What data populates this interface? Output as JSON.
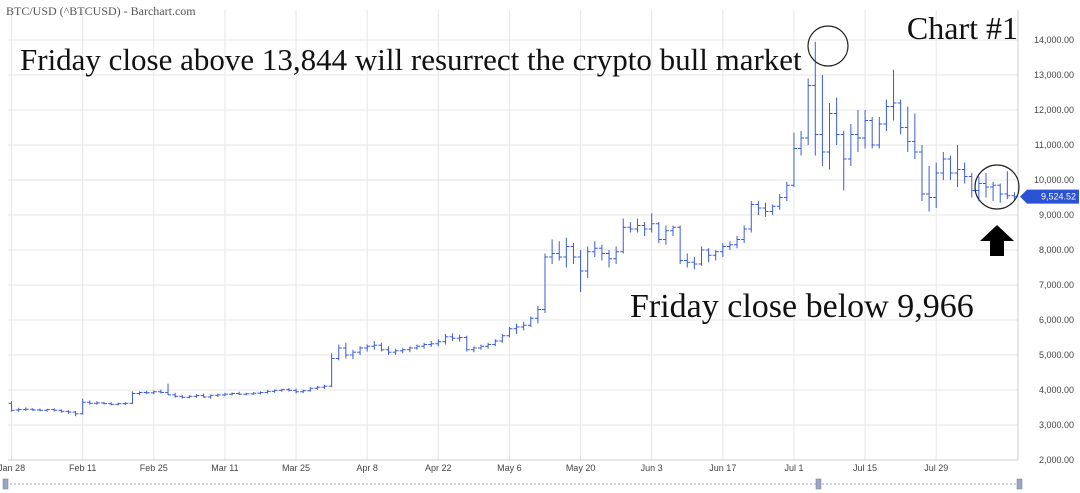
{
  "header": {
    "source_title": "BTC/USD (^BTCUSD) - Barchart.com",
    "chart_label": "Chart #1"
  },
  "annotations": {
    "upper": "Friday close above 13,844 will resurrect the crypto bull market",
    "lower": "Friday close below 9,966"
  },
  "colors": {
    "bars": "#3a5bd9",
    "grid": "#e6e6e6",
    "last_price_tag": "#2a52d4",
    "arrow": "#000000",
    "circle": "#222222"
  },
  "chart_data": {
    "type": "bar",
    "style": "ohlc",
    "title": "BTC/USD (^BTCUSD) - Barchart.com",
    "last_price_label": "9,524.52",
    "last_price": 9524.52,
    "ylim": [
      2000,
      14000
    ],
    "y_ticks": [
      {
        "value": 2000,
        "label": "2,000.00"
      },
      {
        "value": 3000,
        "label": "3,000.00"
      },
      {
        "value": 4000,
        "label": "4,000.00"
      },
      {
        "value": 5000,
        "label": "5,000.00"
      },
      {
        "value": 6000,
        "label": "6,000.00"
      },
      {
        "value": 7000,
        "label": "7,000.00"
      },
      {
        "value": 8000,
        "label": "8,000.00"
      },
      {
        "value": 9000,
        "label": "9,000.00"
      },
      {
        "value": 10000,
        "label": "10,000.00"
      },
      {
        "value": 11000,
        "label": "11,000.00"
      },
      {
        "value": 12000,
        "label": "12,000.00"
      },
      {
        "value": 13000,
        "label": "13,000.00"
      },
      {
        "value": 14000,
        "label": "14,000.00"
      }
    ],
    "x_ticks": [
      {
        "index": 0,
        "label": "Jan 28"
      },
      {
        "index": 10,
        "label": "Feb 11"
      },
      {
        "index": 20,
        "label": "Feb 25"
      },
      {
        "index": 30,
        "label": "Mar 11"
      },
      {
        "index": 40,
        "label": "Mar 25"
      },
      {
        "index": 50,
        "label": "Apr 8"
      },
      {
        "index": 60,
        "label": "Apr 22"
      },
      {
        "index": 70,
        "label": "May 6"
      },
      {
        "index": 80,
        "label": "May 20"
      },
      {
        "index": 90,
        "label": "Jun 3"
      },
      {
        "index": 100,
        "label": "Jun 17"
      },
      {
        "index": 110,
        "label": "Jul 1"
      },
      {
        "index": 120,
        "label": "Jul 15"
      },
      {
        "index": 130,
        "label": "Jul 29"
      }
    ],
    "ohlc": [
      [
        3620,
        3680,
        3380,
        3420
      ],
      [
        3430,
        3490,
        3380,
        3440
      ],
      [
        3440,
        3500,
        3400,
        3450
      ],
      [
        3450,
        3480,
        3400,
        3430
      ],
      [
        3430,
        3470,
        3390,
        3420
      ],
      [
        3420,
        3460,
        3380,
        3440
      ],
      [
        3440,
        3480,
        3390,
        3420
      ],
      [
        3420,
        3450,
        3350,
        3390
      ],
      [
        3390,
        3420,
        3320,
        3370
      ],
      [
        3370,
        3400,
        3250,
        3320
      ],
      [
        3320,
        3750,
        3300,
        3650
      ],
      [
        3650,
        3700,
        3580,
        3620
      ],
      [
        3620,
        3680,
        3580,
        3630
      ],
      [
        3630,
        3660,
        3590,
        3610
      ],
      [
        3610,
        3650,
        3560,
        3590
      ],
      [
        3590,
        3640,
        3560,
        3610
      ],
      [
        3610,
        3650,
        3570,
        3620
      ],
      [
        3620,
        3960,
        3600,
        3900
      ],
      [
        3900,
        3960,
        3850,
        3930
      ],
      [
        3930,
        3980,
        3880,
        3920
      ],
      [
        3920,
        3990,
        3880,
        3950
      ],
      [
        3950,
        4010,
        3900,
        3930
      ],
      [
        3930,
        4180,
        3860,
        3860
      ],
      [
        3860,
        3920,
        3780,
        3820
      ],
      [
        3820,
        3860,
        3760,
        3790
      ],
      [
        3790,
        3850,
        3760,
        3820
      ],
      [
        3820,
        3880,
        3780,
        3840
      ],
      [
        3840,
        3900,
        3780,
        3800
      ],
      [
        3800,
        3870,
        3750,
        3850
      ],
      [
        3850,
        3900,
        3800,
        3860
      ],
      [
        3860,
        3920,
        3820,
        3880
      ],
      [
        3880,
        3930,
        3840,
        3900
      ],
      [
        3900,
        3950,
        3850,
        3880
      ],
      [
        3880,
        3920,
        3850,
        3890
      ],
      [
        3890,
        3940,
        3860,
        3910
      ],
      [
        3910,
        3960,
        3870,
        3930
      ],
      [
        3930,
        4000,
        3900,
        3960
      ],
      [
        3960,
        4020,
        3920,
        3990
      ],
      [
        3990,
        4040,
        3950,
        4010
      ],
      [
        4010,
        4060,
        3960,
        3990
      ],
      [
        3990,
        4040,
        3900,
        3950
      ],
      [
        3950,
        4010,
        3910,
        3980
      ],
      [
        3980,
        4080,
        3950,
        4050
      ],
      [
        4050,
        4120,
        4000,
        4080
      ],
      [
        4080,
        4150,
        4030,
        4110
      ],
      [
        4110,
        5050,
        4080,
        4900
      ],
      [
        4900,
        5300,
        4850,
        5200
      ],
      [
        5200,
        5350,
        4900,
        5000
      ],
      [
        5000,
        5150,
        4880,
        5080
      ],
      [
        5080,
        5250,
        5000,
        5200
      ],
      [
        5200,
        5300,
        5100,
        5250
      ],
      [
        5250,
        5400,
        5150,
        5280
      ],
      [
        5280,
        5350,
        5100,
        5150
      ],
      [
        5150,
        5250,
        5000,
        5080
      ],
      [
        5080,
        5180,
        5000,
        5120
      ],
      [
        5120,
        5200,
        5050,
        5150
      ],
      [
        5150,
        5250,
        5080,
        5200
      ],
      [
        5200,
        5300,
        5150,
        5250
      ],
      [
        5250,
        5350,
        5180,
        5300
      ],
      [
        5300,
        5400,
        5230,
        5320
      ],
      [
        5320,
        5450,
        5250,
        5380
      ],
      [
        5380,
        5600,
        5300,
        5520
      ],
      [
        5520,
        5620,
        5400,
        5480
      ],
      [
        5480,
        5580,
        5380,
        5500
      ],
      [
        5500,
        5550,
        5100,
        5150
      ],
      [
        5150,
        5250,
        5080,
        5200
      ],
      [
        5200,
        5300,
        5150,
        5250
      ],
      [
        5250,
        5350,
        5180,
        5300
      ],
      [
        5300,
        5450,
        5250,
        5400
      ],
      [
        5400,
        5600,
        5350,
        5550
      ],
      [
        5550,
        5800,
        5500,
        5750
      ],
      [
        5750,
        5900,
        5600,
        5800
      ],
      [
        5800,
        5950,
        5700,
        5850
      ],
      [
        5850,
        6100,
        5800,
        6050
      ],
      [
        6050,
        6400,
        5900,
        6300
      ],
      [
        6300,
        7900,
        6200,
        7800
      ],
      [
        7800,
        8300,
        7600,
        7900
      ],
      [
        7900,
        8250,
        7700,
        7800
      ],
      [
        7800,
        8350,
        7500,
        8100
      ],
      [
        8100,
        8200,
        7600,
        7800
      ],
      [
        7800,
        8000,
        6800,
        7400
      ],
      [
        7400,
        8100,
        7200,
        7950
      ],
      [
        7950,
        8250,
        7800,
        8050
      ],
      [
        8050,
        8150,
        7700,
        7900
      ],
      [
        7900,
        8000,
        7500,
        7750
      ],
      [
        7750,
        8100,
        7600,
        7950
      ],
      [
        7950,
        8900,
        7900,
        8650
      ],
      [
        8650,
        8800,
        8500,
        8600
      ],
      [
        8600,
        8900,
        8500,
        8700
      ],
      [
        8700,
        8800,
        8400,
        8600
      ],
      [
        8600,
        9050,
        8500,
        8750
      ],
      [
        8750,
        8800,
        8200,
        8300
      ],
      [
        8300,
        8700,
        8150,
        8550
      ],
      [
        8550,
        8700,
        8400,
        8650
      ],
      [
        8650,
        8700,
        7600,
        7700
      ],
      [
        7700,
        7900,
        7500,
        7650
      ],
      [
        7650,
        7800,
        7450,
        7600
      ],
      [
        7600,
        8100,
        7550,
        8000
      ],
      [
        8000,
        8050,
        7650,
        7850
      ],
      [
        7850,
        8000,
        7700,
        7950
      ],
      [
        7950,
        8200,
        7800,
        8100
      ],
      [
        8100,
        8250,
        8000,
        8150
      ],
      [
        8150,
        8400,
        8050,
        8300
      ],
      [
        8300,
        8700,
        8200,
        8600
      ],
      [
        8600,
        9400,
        8500,
        9300
      ],
      [
        9300,
        9400,
        9000,
        9200
      ],
      [
        9200,
        9350,
        8950,
        9100
      ],
      [
        9100,
        9300,
        9000,
        9250
      ],
      [
        9250,
        9600,
        9150,
        9500
      ],
      [
        9500,
        9950,
        9400,
        9850
      ],
      [
        9850,
        11350,
        9800,
        10900
      ],
      [
        10900,
        11400,
        10700,
        11200
      ],
      [
        11200,
        12900,
        11000,
        12700
      ],
      [
        12700,
        13950,
        10700,
        11300
      ],
      [
        11300,
        13000,
        10400,
        10800
      ],
      [
        10800,
        12200,
        10300,
        11900
      ],
      [
        11900,
        12350,
        11000,
        11300
      ],
      [
        11300,
        11400,
        9700,
        10600
      ],
      [
        10600,
        11600,
        10400,
        11300
      ],
      [
        11300,
        12000,
        10800,
        11200
      ],
      [
        11200,
        12000,
        10900,
        11700
      ],
      [
        11700,
        11800,
        10900,
        11000
      ],
      [
        11000,
        11800,
        10900,
        11600
      ],
      [
        11600,
        12300,
        11400,
        12100
      ],
      [
        12100,
        13150,
        11700,
        12200
      ],
      [
        12200,
        12300,
        11300,
        11500
      ],
      [
        11500,
        12100,
        10800,
        11100
      ],
      [
        11100,
        11900,
        10600,
        10800
      ],
      [
        10800,
        11000,
        9400,
        9600
      ],
      [
        9600,
        10400,
        9100,
        9500
      ],
      [
        9500,
        10500,
        9200,
        10200
      ],
      [
        10200,
        10800,
        10000,
        10600
      ],
      [
        10600,
        10700,
        10000,
        10200
      ],
      [
        10200,
        11000,
        9800,
        10300
      ],
      [
        10300,
        10500,
        9900,
        10100
      ],
      [
        10100,
        10200,
        9500,
        9700
      ],
      [
        9700,
        10100,
        9400,
        9900
      ],
      [
        9900,
        10200,
        9500,
        9800
      ],
      [
        9800,
        9950,
        9400,
        9850
      ],
      [
        9850,
        9900,
        9350,
        9600
      ],
      [
        9600,
        10250,
        9450,
        9550
      ],
      [
        9550,
        9650,
        9400,
        9524.52
      ]
    ]
  }
}
